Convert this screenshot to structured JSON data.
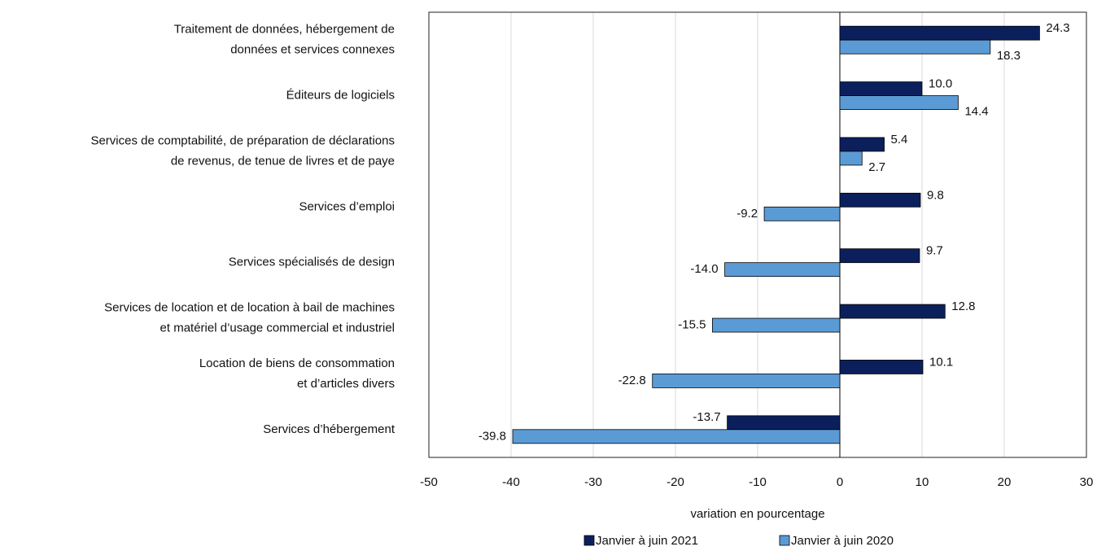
{
  "chart_data": {
    "type": "hbar",
    "categories": [
      [
        "Traitement de données, hébergement de",
        "données et services connexes"
      ],
      [
        "Éditeurs de logiciels"
      ],
      [
        "Services de comptabilité, de préparation de déclarations",
        "de revenus, de tenue de livres et de paye"
      ],
      [
        "Services d’emploi"
      ],
      [
        "Services spécialisés de design"
      ],
      [
        "Services de location et de location à bail de machines",
        "et matériel d’usage commercial et industriel"
      ],
      [
        "Location de biens de consommation",
        "et d’articles divers"
      ],
      [
        "Services d’hébergement"
      ]
    ],
    "series": [
      {
        "name": "Janvier à juin 2021",
        "color": "#0b1f5c",
        "values": [
          24.3,
          10.0,
          5.4,
          9.8,
          9.7,
          12.8,
          10.1,
          -13.7
        ],
        "value_labels": [
          "24.3",
          "10.0",
          "5.4",
          "9.8",
          "9.7",
          "12.8",
          "10.1",
          "-13.7"
        ]
      },
      {
        "name": "Janvier à juin 2020",
        "color": "#5b9bd5",
        "values": [
          18.3,
          14.4,
          2.7,
          -9.2,
          -14.0,
          -15.5,
          -22.8,
          -39.8
        ],
        "value_labels": [
          "18.3",
          "14.4",
          "2.7",
          "-9.2",
          "-14.0",
          "-15.5",
          "-22.8",
          "-39.8"
        ]
      }
    ],
    "xlabel": "variation en pourcentage",
    "xlim": [
      -50,
      30
    ],
    "xticks": [
      -50,
      -40,
      -30,
      -20,
      -10,
      0,
      10,
      20,
      30
    ],
    "grid": true
  }
}
